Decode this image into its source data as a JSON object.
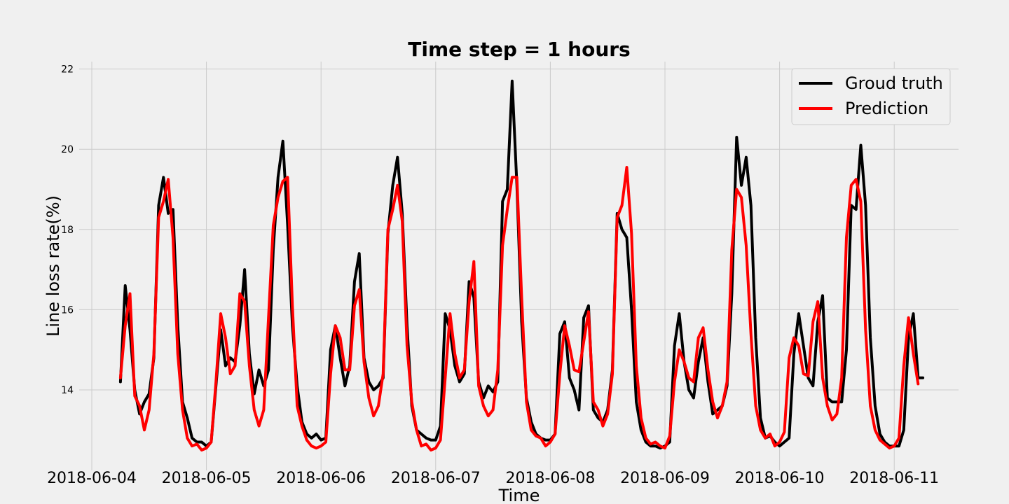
{
  "chart_data": {
    "type": "line",
    "title": "Time step = 1 hours",
    "xlabel": "Time",
    "ylabel": "Line loss rate(%)",
    "x_tick_labels": [
      "2018-06-04",
      "2018-06-05",
      "2018-06-06",
      "2018-06-07",
      "2018-06-08",
      "2018-06-09",
      "2018-06-10",
      "2018-06-11"
    ],
    "y_tick_labels": [
      "14",
      "16",
      "18",
      "20",
      "22"
    ],
    "ylim": [
      12.1,
      22.2
    ],
    "xlim": [
      "2018-06-04",
      "2018-06-11 18:00"
    ],
    "grid": true,
    "legend_position": "top-right",
    "x_start": "2018-06-04 06:00",
    "x_step": "1 hour",
    "series": [
      {
        "name": "Groud truth",
        "color": "#000000",
        "values": [
          14.2,
          16.6,
          15.5,
          14,
          13.4,
          13.7,
          13.9,
          14.8,
          18.6,
          19.3,
          18.4,
          18.5,
          15.6,
          13.7,
          13.3,
          12.8,
          12.7,
          12.7,
          12.6,
          12.7,
          14.1,
          15.5,
          14.6,
          14.8,
          14.7,
          15.6,
          17,
          14.9,
          13.9,
          14.5,
          14.1,
          14.5,
          17.5,
          19.3,
          20.2,
          18.1,
          15.6,
          14.1,
          13.2,
          12.9,
          12.8,
          12.9,
          12.75,
          12.8,
          15,
          15.6,
          14.8,
          14.1,
          14.6,
          16.7,
          17.4,
          14.8,
          14.2,
          14,
          14.1,
          14.3,
          17.9,
          19.1,
          19.8,
          18.4,
          15.6,
          13.6,
          13,
          12.9,
          12.8,
          12.75,
          12.75,
          13.1,
          15.9,
          15.5,
          14.6,
          14.2,
          14.4,
          16.7,
          16.3,
          14.2,
          13.8,
          14.1,
          13.95,
          14.2,
          18.7,
          19,
          21.7,
          19.1,
          15.7,
          13.8,
          13.2,
          12.9,
          12.8,
          12.75,
          12.75,
          12.9,
          15.4,
          15.7,
          14.3,
          14,
          13.5,
          15.8,
          16.1,
          13.5,
          13.3,
          13.2,
          13.5,
          14.5,
          18.4,
          18,
          17.8,
          16,
          13.7,
          13,
          12.7,
          12.6,
          12.6,
          12.55,
          12.6,
          12.7,
          15.1,
          15.9,
          14.7,
          14,
          13.8,
          14.7,
          15.3,
          14.2,
          13.4,
          13.5,
          13.6,
          14.1,
          16.4,
          20.3,
          19.1,
          19.8,
          18.6,
          15.3,
          13.3,
          12.8,
          12.85,
          12.7,
          12.6,
          12.7,
          12.8,
          14.9,
          15.9,
          15.1,
          14.3,
          14.1,
          15.7,
          16.35,
          13.8,
          13.7,
          13.7,
          13.7,
          15,
          18.6,
          18.5,
          20.1,
          18.6,
          15.3,
          13.6,
          12.9,
          12.7,
          12.6,
          12.6,
          12.6,
          13,
          15.3,
          15.9,
          14.3,
          14.3
        ],
        "width": 4
      },
      {
        "name": "Prediction",
        "color": "#ff0000",
        "values": [
          14.3,
          15.6,
          16.4,
          13.85,
          13.6,
          13,
          13.5,
          14.9,
          18.3,
          18.7,
          19.25,
          17.8,
          14.9,
          13.5,
          12.8,
          12.6,
          12.65,
          12.5,
          12.55,
          12.7,
          14.2,
          15.9,
          15.3,
          14.4,
          14.6,
          16.4,
          16.2,
          14.6,
          13.5,
          13.1,
          13.5,
          15.8,
          18.1,
          18.8,
          19.2,
          19.3,
          16.1,
          13.6,
          13.1,
          12.75,
          12.6,
          12.55,
          12.6,
          12.7,
          14.4,
          15.6,
          15.3,
          14.5,
          14.5,
          16.1,
          16.5,
          14.7,
          13.8,
          13.35,
          13.6,
          14.4,
          18,
          18.5,
          19.1,
          18.2,
          15.1,
          13.7,
          13,
          12.6,
          12.65,
          12.5,
          12.55,
          12.75,
          14.3,
          15.9,
          14.9,
          14.3,
          14.5,
          16.2,
          17.2,
          14.1,
          13.6,
          13.35,
          13.5,
          14.5,
          17.6,
          18.5,
          19.3,
          19.3,
          16.3,
          13.7,
          13,
          12.85,
          12.8,
          12.6,
          12.7,
          12.9,
          14.4,
          15.6,
          15.1,
          14.5,
          14.45,
          15.2,
          15.95,
          13.7,
          13.5,
          13.1,
          13.4,
          14.4,
          18.3,
          18.6,
          19.55,
          17.9,
          14.6,
          13.3,
          12.8,
          12.65,
          12.7,
          12.6,
          12.55,
          12.85,
          14.2,
          15,
          14.7,
          14.3,
          14.2,
          15.3,
          15.55,
          14.5,
          13.7,
          13.3,
          13.6,
          14.2,
          17.5,
          19,
          18.8,
          17.6,
          15.4,
          13.6,
          13,
          12.8,
          12.9,
          12.6,
          12.7,
          12.95,
          14.8,
          15.3,
          15.1,
          14.4,
          14.35,
          15.7,
          16.2,
          14.3,
          13.6,
          13.25,
          13.4,
          14.3,
          17.8,
          19.1,
          19.25,
          18.7,
          15.5,
          13.6,
          13,
          12.75,
          12.65,
          12.55,
          12.6,
          12.8,
          14.6,
          15.8,
          14.9,
          14.15
        ],
        "width": 4
      }
    ]
  }
}
